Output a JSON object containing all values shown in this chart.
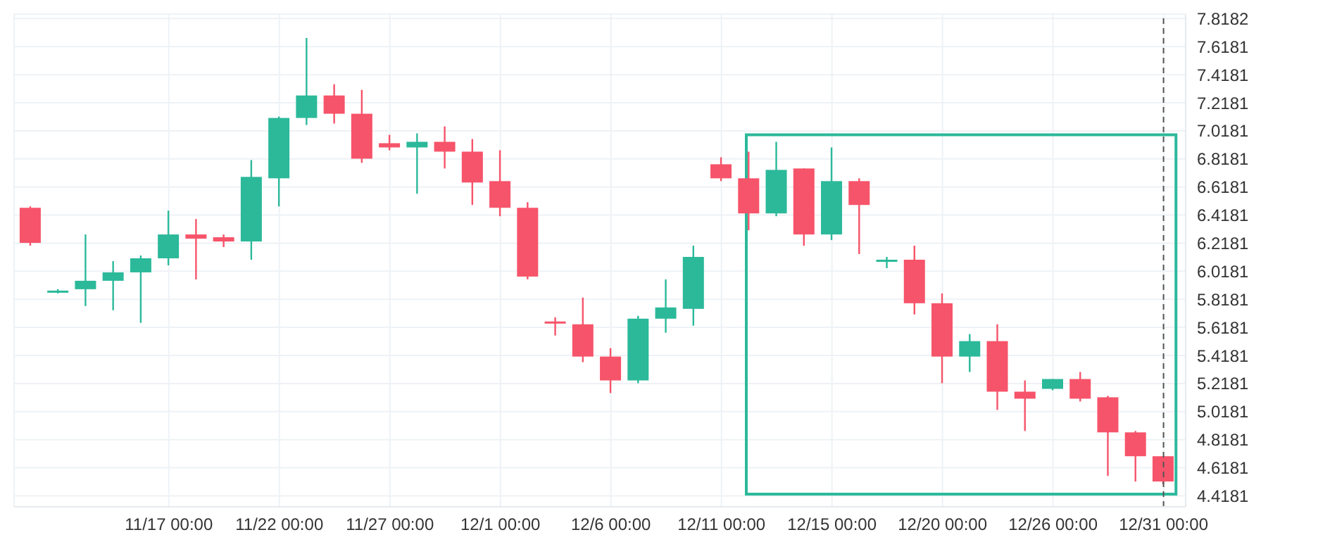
{
  "chart_data": {
    "type": "candlestick",
    "categories": [
      null,
      null,
      null,
      null,
      null,
      "11/17 00:00",
      null,
      null,
      null,
      "11/22 00:00",
      null,
      null,
      null,
      "11/27 00:00",
      null,
      null,
      null,
      "12/1 00:00",
      null,
      null,
      null,
      "12/6 00:00",
      null,
      null,
      null,
      "12/11 00:00",
      null,
      null,
      null,
      "12/15 00:00",
      null,
      null,
      null,
      "12/20 00:00",
      null,
      null,
      null,
      "12/26 00:00",
      null,
      null,
      null,
      "12/31 00:00"
    ],
    "ohlc": [
      [
        6.47,
        6.48,
        6.2,
        6.22
      ],
      [
        5.87,
        5.89,
        5.86,
        5.88
      ],
      [
        5.89,
        6.28,
        5.77,
        5.95
      ],
      [
        5.95,
        6.09,
        5.74,
        6.01
      ],
      [
        6.01,
        6.13,
        5.65,
        6.11
      ],
      [
        6.11,
        6.45,
        6.06,
        6.28
      ],
      [
        6.28,
        6.39,
        5.96,
        6.25
      ],
      [
        6.26,
        6.28,
        6.19,
        6.23
      ],
      [
        6.23,
        6.81,
        6.1,
        6.69
      ],
      [
        6.68,
        7.12,
        6.48,
        7.11
      ],
      [
        7.11,
        7.68,
        7.06,
        7.27
      ],
      [
        7.27,
        7.35,
        7.07,
        7.14
      ],
      [
        7.14,
        7.31,
        6.79,
        6.82
      ],
      [
        6.93,
        6.99,
        6.88,
        6.9
      ],
      [
        6.9,
        7.0,
        6.57,
        6.94
      ],
      [
        6.94,
        7.05,
        6.75,
        6.87
      ],
      [
        6.87,
        6.96,
        6.49,
        6.65
      ],
      [
        6.66,
        6.88,
        6.41,
        6.47
      ],
      [
        6.47,
        6.51,
        5.96,
        5.98
      ],
      [
        5.66,
        5.69,
        5.56,
        5.65
      ],
      [
        5.64,
        5.83,
        5.37,
        5.41
      ],
      [
        5.41,
        5.47,
        5.15,
        5.24
      ],
      [
        5.24,
        5.7,
        5.22,
        5.68
      ],
      [
        5.68,
        5.96,
        5.58,
        5.76
      ],
      [
        5.75,
        6.2,
        5.63,
        6.12
      ],
      [
        6.78,
        6.83,
        6.66,
        6.68
      ],
      [
        6.68,
        6.87,
        6.31,
        6.43
      ],
      [
        6.43,
        6.94,
        6.41,
        6.74
      ],
      [
        6.75,
        6.75,
        6.2,
        6.28
      ],
      [
        6.28,
        6.9,
        6.24,
        6.66
      ],
      [
        6.66,
        6.68,
        6.14,
        6.49
      ],
      [
        6.09,
        6.12,
        6.04,
        6.1
      ],
      [
        6.1,
        6.2,
        5.71,
        5.79
      ],
      [
        5.79,
        5.86,
        5.22,
        5.41
      ],
      [
        5.41,
        5.57,
        5.3,
        5.52
      ],
      [
        5.52,
        5.64,
        5.03,
        5.16
      ],
      [
        5.16,
        5.24,
        4.88,
        5.11
      ],
      [
        5.18,
        5.25,
        5.17,
        5.25
      ],
      [
        5.25,
        5.3,
        5.09,
        5.11
      ],
      [
        5.12,
        5.13,
        4.56,
        4.87
      ],
      [
        4.87,
        4.88,
        4.52,
        4.7
      ],
      [
        4.7,
        4.7,
        4.5,
        4.52
      ]
    ],
    "colors": [
      "#f6546a",
      "#2bb99a",
      "#2bb99a",
      "#2bb99a",
      "#2bb99a",
      "#2bb99a",
      "#f6546a",
      "#f6546a",
      "#2bb99a",
      "#2bb99a",
      "#2bb99a",
      "#f6546a",
      "#f6546a",
      "#f6546a",
      "#2bb99a",
      "#f6546a",
      "#f6546a",
      "#f6546a",
      "#f6546a",
      "#f6546a",
      "#f6546a",
      "#f6546a",
      "#2bb99a",
      "#2bb99a",
      "#2bb99a",
      "#f6546a",
      "#f6546a",
      "#2bb99a",
      "#f6546a",
      "#2bb99a",
      "#f6546a",
      "#2bb99a",
      "#f6546a",
      "#f6546a",
      "#2bb99a",
      "#f6546a",
      "#f6546a",
      "#2bb99a",
      "#f6546a",
      "#f6546a",
      "#f6546a",
      "#f6546a"
    ],
    "ylim": [
      4.34,
      7.85
    ],
    "yticks": [
      4.4181,
      4.6181,
      4.8181,
      5.0181,
      5.2181,
      5.4181,
      5.6181,
      5.8181,
      6.0181,
      6.2181,
      6.4181,
      6.6181,
      6.8181,
      7.0181,
      7.2181,
      7.4181,
      7.6181,
      7.8182
    ],
    "grid": true,
    "ref_lines": [
      {
        "axis": "x",
        "value": "12/31 00:00",
        "color": "#555555",
        "line_style": "dashed"
      }
    ]
  }
}
